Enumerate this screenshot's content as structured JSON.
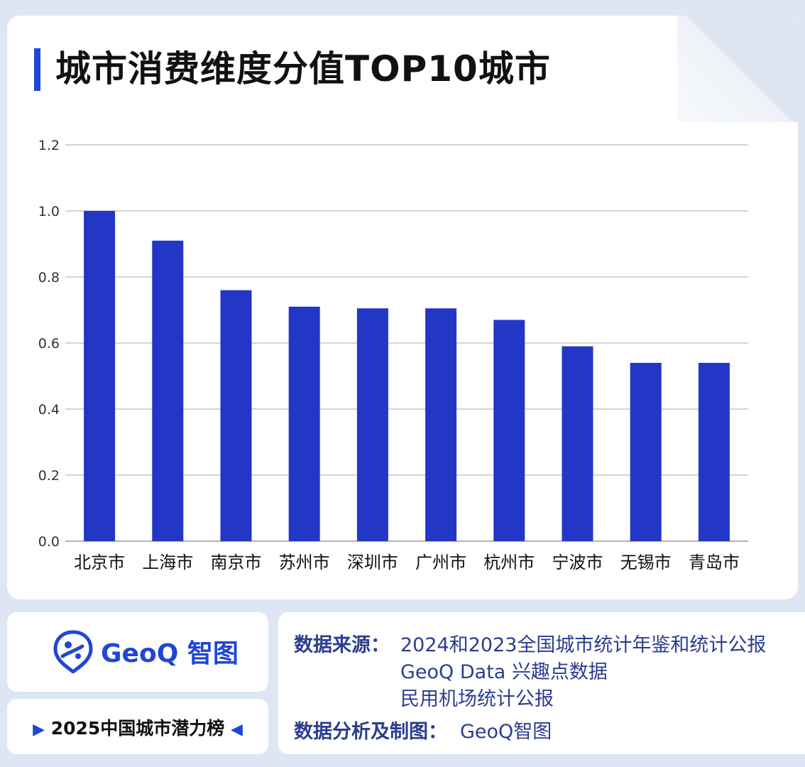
{
  "title": "城市消费维度分值TOP10城市",
  "chart_data": {
    "type": "bar",
    "categories": [
      "北京市",
      "上海市",
      "南京市",
      "苏州市",
      "深圳市",
      "广州市",
      "杭州市",
      "宁波市",
      "无锡市",
      "青岛市"
    ],
    "values": [
      1.0,
      0.91,
      0.76,
      0.71,
      0.705,
      0.705,
      0.67,
      0.59,
      0.54,
      0.54
    ],
    "yticks": [
      "0.0",
      "0.2",
      "0.4",
      "0.6",
      "0.8",
      "1.0",
      "1.2"
    ],
    "ylim": [
      0,
      1.2
    ],
    "grid": true,
    "bar_color": "#2337c6"
  },
  "brand": {
    "logo_text": "GeoQ 智图",
    "logo_icon": "geoq-pin-icon",
    "accent_color": "#2046d6"
  },
  "tagline": "2025中国城市潜力榜",
  "source": {
    "label": "数据来源：",
    "lines": [
      "2024和2023全国城市统计年鉴和统计公报",
      "GeoQ Data 兴趣点数据",
      "民用机场统计公报"
    ],
    "analysis_label": "数据分析及制图：",
    "analysis_value": "GeoQ智图"
  }
}
